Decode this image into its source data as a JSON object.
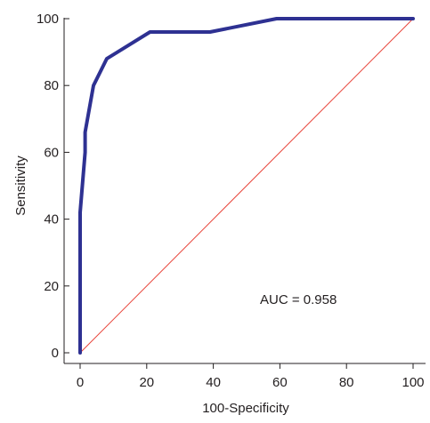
{
  "chart_data": {
    "type": "line",
    "title": "",
    "xlabel": "100-Specificity",
    "ylabel": "Sensitivity",
    "xlim": [
      0,
      100
    ],
    "ylim": [
      0,
      100
    ],
    "xticks": [
      0,
      20,
      40,
      60,
      80,
      100
    ],
    "yticks": [
      0,
      20,
      40,
      60,
      80,
      100
    ],
    "grid": false,
    "annotation": "AUC = 0.958",
    "series": [
      {
        "color": "#2e3192",
        "x": [
          0,
          0,
          1.5,
          1.5,
          4,
          8,
          21,
          39,
          59,
          100
        ],
        "y": [
          0,
          42,
          60,
          66,
          80,
          88,
          96,
          96,
          100,
          100
        ]
      },
      {
        "color": "#e8443a",
        "x": [
          0,
          100
        ],
        "y": [
          0,
          100
        ]
      }
    ]
  }
}
